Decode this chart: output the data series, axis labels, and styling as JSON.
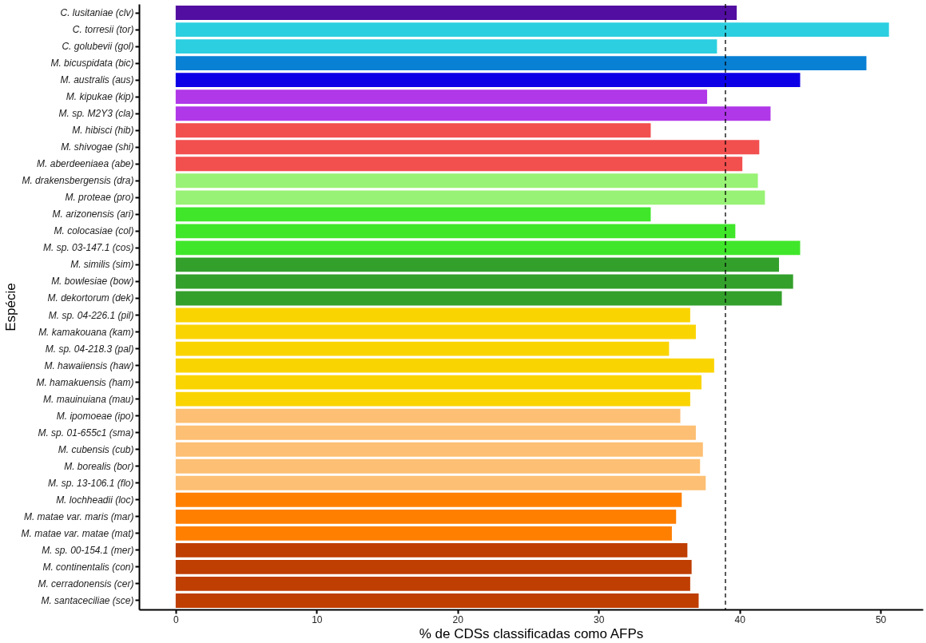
{
  "chart_data": {
    "type": "bar",
    "orientation": "horizontal",
    "xlabel": "% de CDSs classificadas como AFPs",
    "ylabel": "Espécie",
    "categories": [
      "C. lusitaniae (clv)",
      "C. torresii (tor)",
      "C. golubevii (gol)",
      "M. bicuspidata (bic)",
      "M. australis (aus)",
      "M. kipukae (kip)",
      "M. sp. M2Y3 (cla)",
      "M. hibisci (hib)",
      "M. shivogae (shi)",
      "M. aberdeeniaea (abe)",
      "M. drakensbergensis (dra)",
      "M. proteae (pro)",
      "M. arizonensis (ari)",
      "M. colocasiae (col)",
      "M. sp. 03-147.1 (cos)",
      "M. similis (sim)",
      "M. bowlesiae (bow)",
      "M. dekortorum (dek)",
      "M. sp. 04-226.1 (pil)",
      "M. kamakouana (kam)",
      "M. sp. 04-218.3 (pal)",
      "M. hawaiiensis (haw)",
      "M. hamakuensis (ham)",
      "M. mauinuiana (mau)",
      "M. ipomoeae (ipo)",
      "M. sp. 01-655c1 (sma)",
      "M. cubensis (cub)",
      "M. borealis (bor)",
      "M. sp. 13-106.1 (flo)",
      "M. lochheadii (loc)",
      "M. matae var. maris (mar)",
      "M. matae var. matae (mat)",
      "M. sp. 00-154.1 (mer)",
      "M. continentalis (con)",
      "M. cerradonensis (cer)",
      "M. santaceciliae (sce)"
    ],
    "values": [
      39.8,
      50.6,
      38.4,
      49.0,
      44.3,
      37.7,
      42.2,
      33.7,
      41.4,
      40.2,
      41.3,
      41.8,
      33.7,
      39.7,
      44.3,
      42.8,
      43.8,
      43.0,
      36.5,
      36.9,
      35.0,
      38.2,
      37.3,
      36.5,
      35.8,
      36.9,
      37.4,
      37.2,
      37.6,
      35.9,
      35.5,
      35.2,
      36.3,
      36.6,
      36.5,
      37.1
    ],
    "colors": [
      "#520ea0",
      "#2ccfe0",
      "#2ccfe0",
      "#0880d4",
      "#0d00e6",
      "#b038e8",
      "#b038e8",
      "#f24f4f",
      "#f24f4f",
      "#f24f4f",
      "#98f275",
      "#98f275",
      "#40e62a",
      "#40e62a",
      "#40e62a",
      "#33a02c",
      "#33a02c",
      "#33a02c",
      "#fad400",
      "#fad400",
      "#fad400",
      "#fad400",
      "#fad400",
      "#fad400",
      "#fdbf73",
      "#fdbf73",
      "#fdbf73",
      "#fdbf73",
      "#fdbf73",
      "#ff7f00",
      "#ff7f00",
      "#ff7f00",
      "#bf3e02",
      "#bf3e02",
      "#bf3e02",
      "#bf3e02"
    ],
    "xlim": [
      -2.6,
      53.0
    ],
    "xticks": [
      0,
      10,
      20,
      30,
      40,
      50
    ],
    "grid": false,
    "ref_lines": [
      {
        "axis": "x",
        "value": 39.0,
        "line_style": "dashed",
        "color": "#000000"
      }
    ]
  }
}
